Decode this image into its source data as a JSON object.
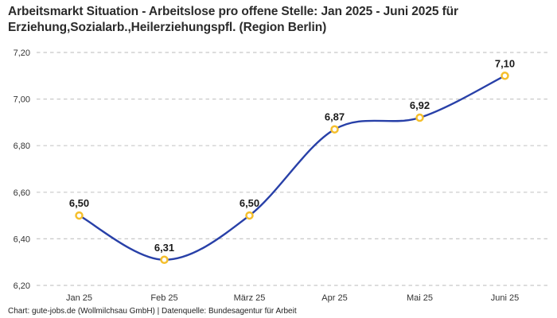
{
  "chart_data": {
    "type": "line",
    "title": "Arbeitsmarkt Situation - Arbeitslose pro offene Stelle: Jan 2025 - Juni 2025 für Erziehung,Sozialarb.,Heilerziehungspfl. (Region Berlin)",
    "categories": [
      "Jan 25",
      "Feb 25",
      "März 25",
      "Apr 25",
      "Mai 25",
      "Juni 25"
    ],
    "values": [
      6.5,
      6.31,
      6.5,
      6.87,
      6.92,
      7.1
    ],
    "point_labels": [
      "6,50",
      "6,31",
      "6,50",
      "6,87",
      "6,92",
      "7,10"
    ],
    "y_ticks": [
      {
        "v": 7.2,
        "label": "7,20"
      },
      {
        "v": 7.0,
        "label": "7,00"
      },
      {
        "v": 6.8,
        "label": "6,80"
      },
      {
        "v": 6.6,
        "label": "6,60"
      },
      {
        "v": 6.4,
        "label": "6,40"
      },
      {
        "v": 6.2,
        "label": "6,20"
      }
    ],
    "ylim": [
      6.2,
      7.2
    ],
    "xlabel": "",
    "ylabel": "",
    "grid": "horizontal-dashed",
    "legend": "none",
    "curve": "smooth"
  },
  "footer": "Chart: gute-jobs.de (Wollmilchsau GmbH) | Datenquelle: Bundesagentur für Arbeit",
  "colors": {
    "line": "#2840a8",
    "marker_ring": "#f5bf2c",
    "marker_fill": "#ffffff",
    "grid": "#c8c8c8",
    "title": "#2b2b2b",
    "axis_text": "#333333",
    "point_label": "#1a1a1a",
    "background": "#ffffff"
  }
}
